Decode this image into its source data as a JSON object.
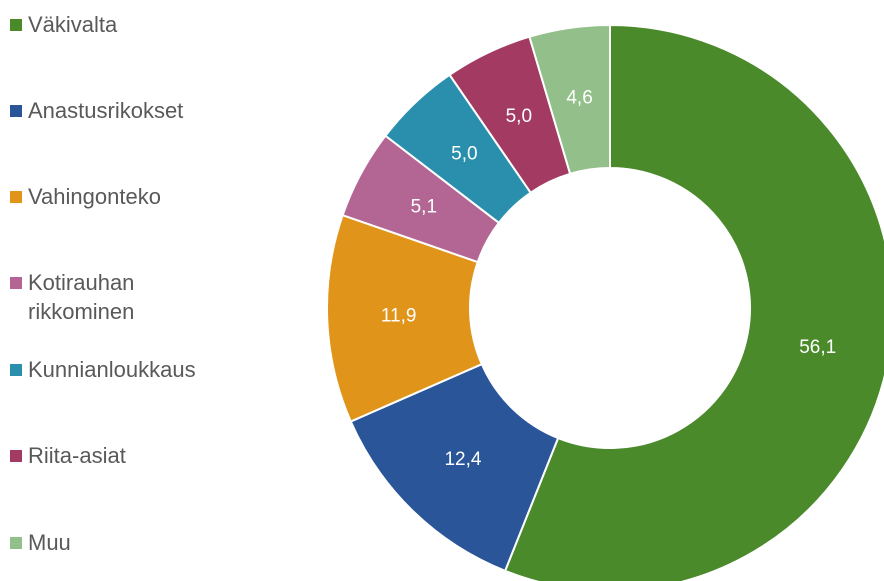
{
  "chart_data": {
    "type": "donut",
    "categories": [
      "Väkivalta",
      "Anastusrikokset",
      "Vahingonteko",
      "Kotirauhan rikkominen",
      "Kunnianloukkaus",
      "Riita-asiat",
      "Muu"
    ],
    "values": [
      56.1,
      12.4,
      11.9,
      5.1,
      5.0,
      5.0,
      4.6
    ],
    "value_labels": [
      "56,1",
      "12,4",
      "11,9",
      "5,1",
      "5,0",
      "5,0",
      "4,6"
    ],
    "colors": [
      "#4a8a2a",
      "#2a5599",
      "#e0941a",
      "#b36694",
      "#2a8fad",
      "#a33a62",
      "#93c08a"
    ],
    "legend": "left"
  }
}
